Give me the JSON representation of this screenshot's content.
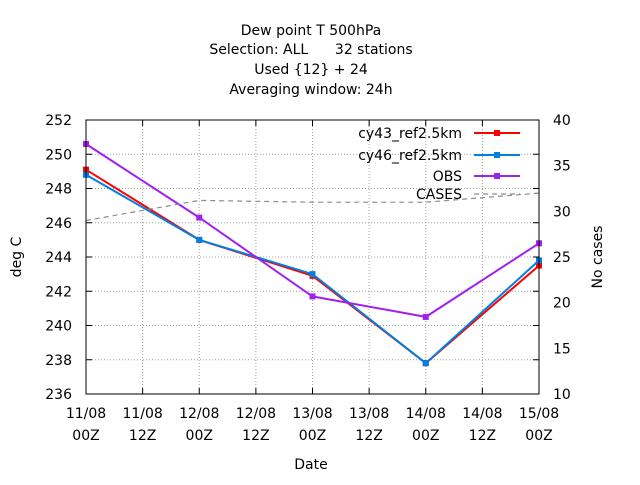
{
  "chart_data": {
    "type": "line",
    "title_lines": [
      "Dew point T 500hPa",
      "Selection: ALL      32 stations",
      "Used {12} + 24",
      "Averaging window: 24h"
    ],
    "xlabel": "Date",
    "ylabel": "deg C",
    "y2label": "No cases",
    "x_categories": [
      [
        "11/08",
        "00Z"
      ],
      [
        "11/08",
        "12Z"
      ],
      [
        "12/08",
        "00Z"
      ],
      [
        "12/08",
        "12Z"
      ],
      [
        "13/08",
        "00Z"
      ],
      [
        "13/08",
        "12Z"
      ],
      [
        "14/08",
        "00Z"
      ],
      [
        "14/08",
        "12Z"
      ],
      [
        "15/08",
        "00Z"
      ]
    ],
    "ylim": [
      236,
      252
    ],
    "yticks": [
      236,
      238,
      240,
      242,
      244,
      246,
      248,
      250,
      252
    ],
    "y2lim": [
      10,
      40
    ],
    "y2ticks": [
      10,
      15,
      20,
      25,
      30,
      35,
      40
    ],
    "grid": true,
    "legend_position": "top-right",
    "series": [
      {
        "name": "cy43_ref2.5km",
        "color": "#ff0000",
        "axis": "left",
        "style": "line-points",
        "x": [
          0,
          2,
          4,
          6,
          8
        ],
        "y": [
          249.1,
          245.0,
          242.9,
          237.8,
          243.5
        ]
      },
      {
        "name": "cy46_ref2.5km",
        "color": "#0080e0",
        "axis": "left",
        "style": "line-points",
        "x": [
          0,
          2,
          4,
          6,
          8
        ],
        "y": [
          248.8,
          245.0,
          243.0,
          237.8,
          243.8
        ]
      },
      {
        "name": "OBS",
        "color": "#a020f0",
        "axis": "left",
        "style": "line-points",
        "x": [
          0,
          2,
          4,
          6,
          8
        ],
        "y": [
          250.6,
          246.3,
          241.7,
          240.5,
          244.8
        ]
      },
      {
        "name": "CASES",
        "color": "#8c8c8c",
        "axis": "right",
        "style": "dashed",
        "x": [
          0,
          2,
          4,
          6,
          8
        ],
        "y": [
          29,
          31.2,
          31,
          31,
          32
        ]
      }
    ]
  }
}
